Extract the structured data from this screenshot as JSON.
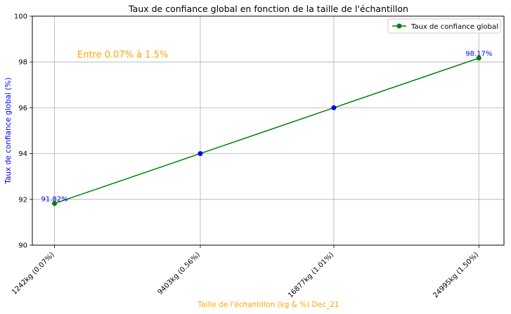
{
  "chart_data": {
    "type": "line",
    "title": "Taux de confiance global en fonction de la taille de l'échantillon",
    "xlabel": "Taille de l'échantillon (kg & %) Dec_21",
    "ylabel": "Taux de confiance global (%)",
    "annotation": "Entre 0.07% à 1.5%",
    "categories": [
      "1242kg (0.07%)",
      "9403kg (0.56%)",
      "16877kg (1.01%)",
      "24995kg (1.50%)"
    ],
    "x": [
      1242,
      9403,
      16877,
      24995
    ],
    "yticks": [
      "90",
      "92",
      "94",
      "96",
      "98",
      "100"
    ],
    "ylim": [
      90,
      100
    ],
    "grid": true,
    "legend_position": "top-right",
    "series": [
      {
        "name": "Taux de confiance global",
        "values": [
          91.82,
          94.0,
          96.0,
          98.17
        ],
        "color": "#008000",
        "marker_colors": [
          "#008000",
          "#0000ff",
          "#0000ff",
          "#008000"
        ],
        "point_labels": [
          "91.82%",
          "",
          "",
          "98.17%"
        ]
      }
    ],
    "colors": {
      "title": "#000000",
      "axis_label": "#ffa500",
      "ylabel": "#0000ff",
      "annotation": "#ffa500",
      "point_label": "#0000ff",
      "grid": "#b0b0b0"
    }
  }
}
